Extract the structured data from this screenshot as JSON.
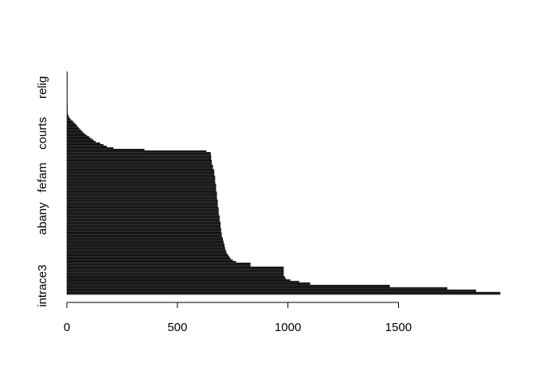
{
  "chart_data": {
    "type": "bar",
    "orientation": "horizontal",
    "title": "",
    "xlabel": "",
    "ylabel": "",
    "xlim": [
      0,
      1970
    ],
    "x_ticks": [
      0,
      500,
      1000,
      1500
    ],
    "y_tick_labels": [
      "intrace3",
      "abany",
      "fefam",
      "courts",
      "relig"
    ],
    "grid": false,
    "bar_color": "#1a1a1a",
    "segments": [
      {
        "from": 0,
        "to": 3,
        "value": 1960
      },
      {
        "from": 3,
        "to": 6,
        "value": 1850
      },
      {
        "from": 6,
        "to": 9,
        "value": 1720
      },
      {
        "from": 9,
        "to": 12,
        "value": 1460
      },
      {
        "from": 12,
        "to": 15,
        "value": 1100
      },
      {
        "from": 15,
        "to": 17,
        "value": 1050
      },
      {
        "from": 17,
        "to": 19,
        "value": 1010
      },
      {
        "from": 19,
        "to": 21,
        "value": 990
      },
      {
        "from": 21,
        "to": 23,
        "value": 985
      },
      {
        "from": 23,
        "to": 35,
        "value": 980
      },
      {
        "from": 35,
        "to": 40,
        "value": 830
      },
      {
        "from": 40,
        "to": 42,
        "value": 765
      },
      {
        "from": 42,
        "to": 44,
        "value": 750
      },
      {
        "from": 44,
        "to": 46,
        "value": 740
      },
      {
        "from": 46,
        "to": 48,
        "value": 735
      },
      {
        "from": 48,
        "to": 50,
        "value": 730
      },
      {
        "from": 50,
        "to": 52,
        "value": 725
      },
      {
        "from": 52,
        "to": 56,
        "value": 720
      },
      {
        "from": 56,
        "to": 60,
        "value": 715
      },
      {
        "from": 60,
        "to": 64,
        "value": 712
      },
      {
        "from": 64,
        "to": 68,
        "value": 708
      },
      {
        "from": 68,
        "to": 72,
        "value": 705
      },
      {
        "from": 72,
        "to": 78,
        "value": 700
      },
      {
        "from": 78,
        "to": 84,
        "value": 697
      },
      {
        "from": 84,
        "to": 92,
        "value": 694
      },
      {
        "from": 92,
        "to": 100,
        "value": 690
      },
      {
        "from": 100,
        "to": 110,
        "value": 686
      },
      {
        "from": 110,
        "to": 120,
        "value": 682
      },
      {
        "from": 120,
        "to": 130,
        "value": 678
      },
      {
        "from": 130,
        "to": 140,
        "value": 674
      },
      {
        "from": 140,
        "to": 150,
        "value": 670
      },
      {
        "from": 150,
        "to": 158,
        "value": 666
      },
      {
        "from": 158,
        "to": 164,
        "value": 660
      },
      {
        "from": 164,
        "to": 170,
        "value": 655
      },
      {
        "from": 170,
        "to": 176,
        "value": 652
      },
      {
        "from": 176,
        "to": 180,
        "value": 650
      },
      {
        "from": 180,
        "to": 182,
        "value": 630
      },
      {
        "from": 182,
        "to": 184,
        "value": 350
      },
      {
        "from": 184,
        "to": 186,
        "value": 210
      },
      {
        "from": 186,
        "to": 188,
        "value": 180
      },
      {
        "from": 188,
        "to": 190,
        "value": 165
      },
      {
        "from": 190,
        "to": 192,
        "value": 150
      },
      {
        "from": 192,
        "to": 194,
        "value": 130
      },
      {
        "from": 194,
        "to": 196,
        "value": 120
      },
      {
        "from": 196,
        "to": 198,
        "value": 110
      },
      {
        "from": 198,
        "to": 200,
        "value": 100
      },
      {
        "from": 200,
        "to": 202,
        "value": 90
      },
      {
        "from": 202,
        "to": 204,
        "value": 80
      },
      {
        "from": 204,
        "to": 206,
        "value": 72
      },
      {
        "from": 206,
        "to": 208,
        "value": 65
      },
      {
        "from": 208,
        "to": 210,
        "value": 58
      },
      {
        "from": 210,
        "to": 212,
        "value": 52
      },
      {
        "from": 212,
        "to": 214,
        "value": 46
      },
      {
        "from": 214,
        "to": 216,
        "value": 40
      },
      {
        "from": 216,
        "to": 218,
        "value": 33
      },
      {
        "from": 218,
        "to": 220,
        "value": 26
      },
      {
        "from": 220,
        "to": 222,
        "value": 18
      },
      {
        "from": 222,
        "to": 224,
        "value": 12
      },
      {
        "from": 224,
        "to": 226,
        "value": 8
      },
      {
        "from": 226,
        "to": 228,
        "value": 5
      },
      {
        "from": 228,
        "to": 240,
        "value": 3
      },
      {
        "from": 240,
        "to": 265,
        "value": 1.5
      },
      {
        "from": 265,
        "to": 282,
        "value": 0.8
      }
    ],
    "n_bars": 282,
    "y_label_bar_index": [
      11,
      96,
      148,
      204,
      262
    ]
  }
}
